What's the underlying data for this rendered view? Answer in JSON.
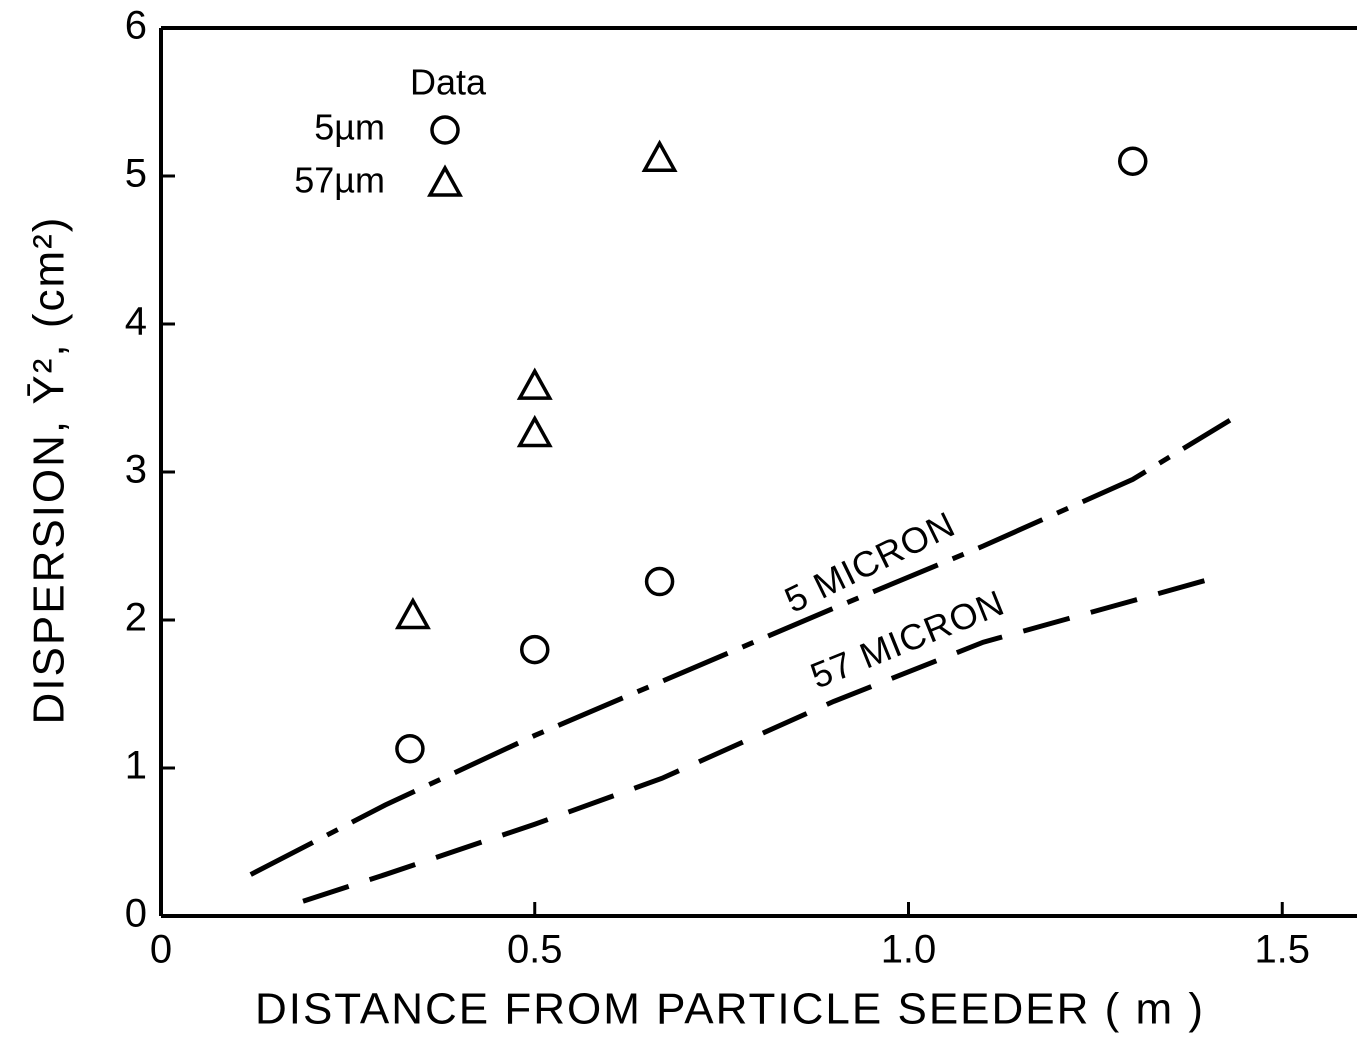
{
  "chart_data": {
    "type": "scatter",
    "xlabel": "DISTANCE  FROM PARTICLE SEEDER  ( m )",
    "ylabel": "DISPERSION, Ȳ², (cm²)",
    "legend_title": "Data",
    "xlim": [
      0,
      1.6
    ],
    "ylim": [
      0,
      6
    ],
    "xticks": [
      0,
      0.5,
      {
        "value": 1,
        "label": "1.0"
      },
      1.5
    ],
    "yticks": [
      0,
      1,
      2,
      3,
      4,
      5,
      6
    ],
    "series": [
      {
        "name": "5µm",
        "marker": "circle",
        "color": "#000000",
        "x": [
          0.333,
          0.5,
          0.667,
          1.3
        ],
        "values": [
          1.13,
          1.8,
          2.26,
          5.1
        ]
      },
      {
        "name": "57µm",
        "marker": "triangle",
        "color": "#000000",
        "x": [
          0.337,
          0.5,
          0.5,
          0.667
        ],
        "values": [
          2.03,
          3.58,
          3.26,
          5.12
        ]
      },
      {
        "name": "5 MICRON",
        "type": "line",
        "line_style": "dashdot",
        "color": "#000000",
        "x": [
          0.12,
          0.3,
          0.5,
          0.7,
          0.9,
          1.1,
          1.3,
          1.43
        ],
        "values": [
          0.28,
          0.75,
          1.22,
          1.65,
          2.08,
          2.5,
          2.95,
          3.35
        ]
      },
      {
        "name": "57 MICRON",
        "type": "line",
        "line_style": "dashed",
        "color": "#000000",
        "x": [
          0.19,
          0.3,
          0.4,
          0.5,
          0.67,
          0.9,
          1.1,
          1.3,
          1.42
        ],
        "values": [
          0.1,
          0.28,
          0.45,
          0.62,
          0.93,
          1.45,
          1.85,
          2.13,
          2.3
        ]
      }
    ]
  }
}
